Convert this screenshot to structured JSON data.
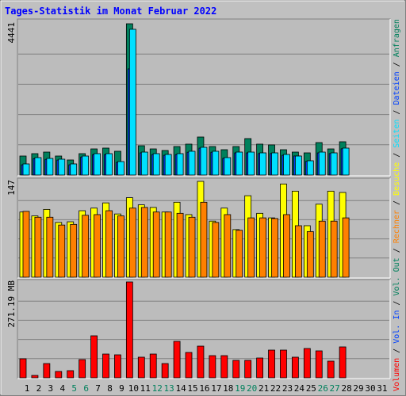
{
  "title": "Tages-Statistik im Monat Februar 2022",
  "separator": "/",
  "chart_data": [
    {
      "type": "bar",
      "ylim": [
        0,
        4441
      ],
      "yticks": [
        4441
      ],
      "grid": true,
      "grid_divisions": 5,
      "series": [
        {
          "name": "Anfragen",
          "color": "#00805c",
          "values": [
            558,
            628,
            674,
            558,
            442,
            628,
            767,
            791,
            698,
            4441,
            860,
            767,
            721,
            837,
            907,
            1116,
            837,
            744,
            837,
            1070,
            907,
            884,
            744,
            674,
            651,
            953,
            767,
            977,
            null,
            null,
            null
          ]
        },
        {
          "name": "Dateien",
          "color": "#0040ff",
          "values": [
            300,
            480,
            460,
            440,
            300,
            530,
            600,
            600,
            370,
            3116,
            650,
            600,
            580,
            600,
            670,
            790,
            670,
            490,
            650,
            650,
            630,
            630,
            580,
            560,
            400,
            650,
            630,
            770,
            null,
            null,
            null
          ]
        },
        {
          "name": "Seiten",
          "color": "#00e0ff",
          "values": [
            326,
            512,
            488,
            465,
            326,
            558,
            628,
            628,
            395,
            4279,
            674,
            628,
            605,
            628,
            698,
            814,
            698,
            512,
            674,
            674,
            651,
            651,
            605,
            558,
            419,
            674,
            651,
            791,
            null,
            null,
            null
          ]
        }
      ]
    },
    {
      "type": "bar",
      "ylim": [
        0,
        147
      ],
      "yticks": [
        147
      ],
      "grid": true,
      "grid_divisions": 5,
      "series": [
        {
          "name": "Besuche",
          "color": "#ffff00",
          "values": [
            100,
            94,
            104,
            84,
            85,
            102,
            106,
            114,
            97,
            122,
            111,
            107,
            100,
            115,
            96,
            147,
            86,
            106,
            73,
            125,
            98,
            91,
            143,
            132,
            79,
            112,
            132,
            130,
            null,
            null,
            null
          ]
        },
        {
          "name": "Rechner",
          "color": "#ff8000",
          "values": [
            101,
            92,
            92,
            80,
            81,
            95,
            96,
            102,
            94,
            106,
            107,
            100,
            100,
            98,
            92,
            115,
            84,
            96,
            72,
            91,
            91,
            90,
            96,
            79,
            70,
            86,
            86,
            91,
            null,
            null,
            null
          ]
        }
      ]
    },
    {
      "type": "bar",
      "ylim": [
        0,
        271.19
      ],
      "yticks": [
        {
          "value": 271.19,
          "label": "271.19 MB"
        }
      ],
      "grid": true,
      "grid_divisions": 5,
      "extra_legend": [
        {
          "name": "Vol. Out",
          "color": "#00805c"
        },
        {
          "name": "Vol. In",
          "color": "#0040ff"
        }
      ],
      "categories": [
        "1",
        "2",
        "3",
        "4",
        "5",
        "6",
        "7",
        "8",
        "9",
        "10",
        "11",
        "12",
        "13",
        "14",
        "15",
        "16",
        "17",
        "18",
        "19",
        "20",
        "21",
        "22",
        "23",
        "24",
        "25",
        "26",
        "27",
        "28",
        "29",
        "30",
        "31"
      ],
      "weekend_days": [
        5,
        6,
        12,
        13,
        19,
        20,
        26,
        27
      ],
      "weekend_color": "#00805c",
      "series": [
        {
          "name": "Volumen",
          "color": "#ff0000",
          "values": [
            53.8,
            6.7,
            40.3,
            17.9,
            20.2,
            51.5,
            118.8,
            67.2,
            65.0,
            271.19,
            58.3,
            67.2,
            40.3,
            103.1,
            71.7,
            89.6,
            62.7,
            62.7,
            49.3,
            49.3,
            56.0,
            78.4,
            78.4,
            58.3,
            82.9,
            76.2,
            47.1,
            87.4,
            null,
            null,
            null
          ]
        }
      ]
    }
  ]
}
